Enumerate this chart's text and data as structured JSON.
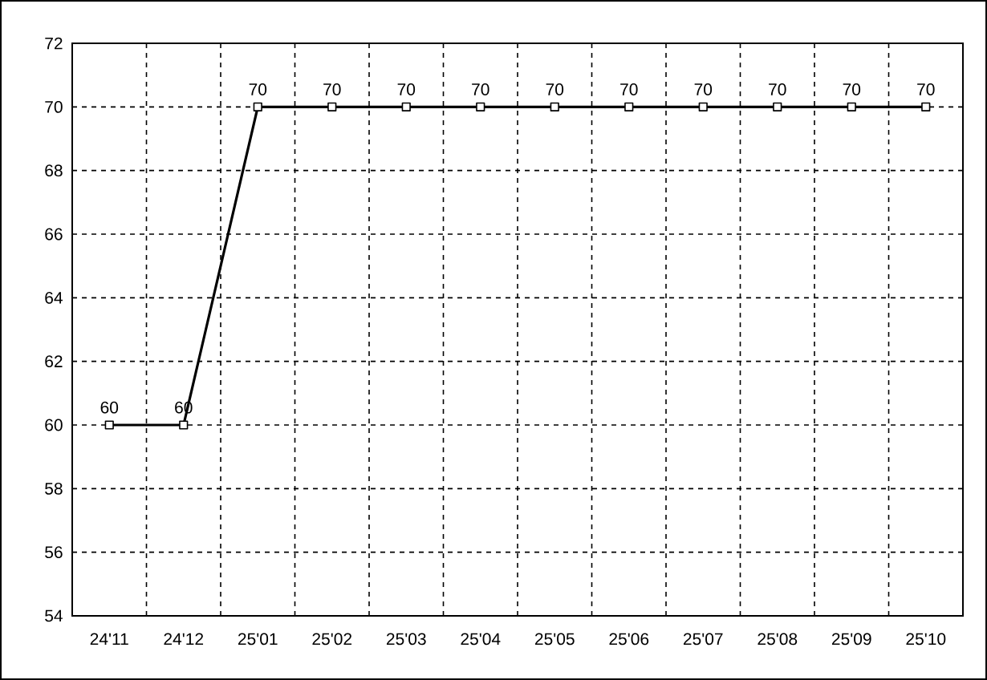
{
  "chart_data": {
    "type": "line",
    "categories": [
      "24'11",
      "24'12",
      "25'01",
      "25'02",
      "25'03",
      "25'04",
      "25'05",
      "25'06",
      "25'07",
      "25'08",
      "25'09",
      "25'10"
    ],
    "values": [
      60,
      60,
      70,
      70,
      70,
      70,
      70,
      70,
      70,
      70,
      70,
      70
    ],
    "color": "#000000",
    "ylim": [
      54,
      72
    ],
    "yticks": [
      54,
      56,
      58,
      60,
      62,
      64,
      66,
      68,
      70,
      72
    ],
    "grid": true,
    "marker": "square",
    "line_style": "solid",
    "data_labels": true
  }
}
